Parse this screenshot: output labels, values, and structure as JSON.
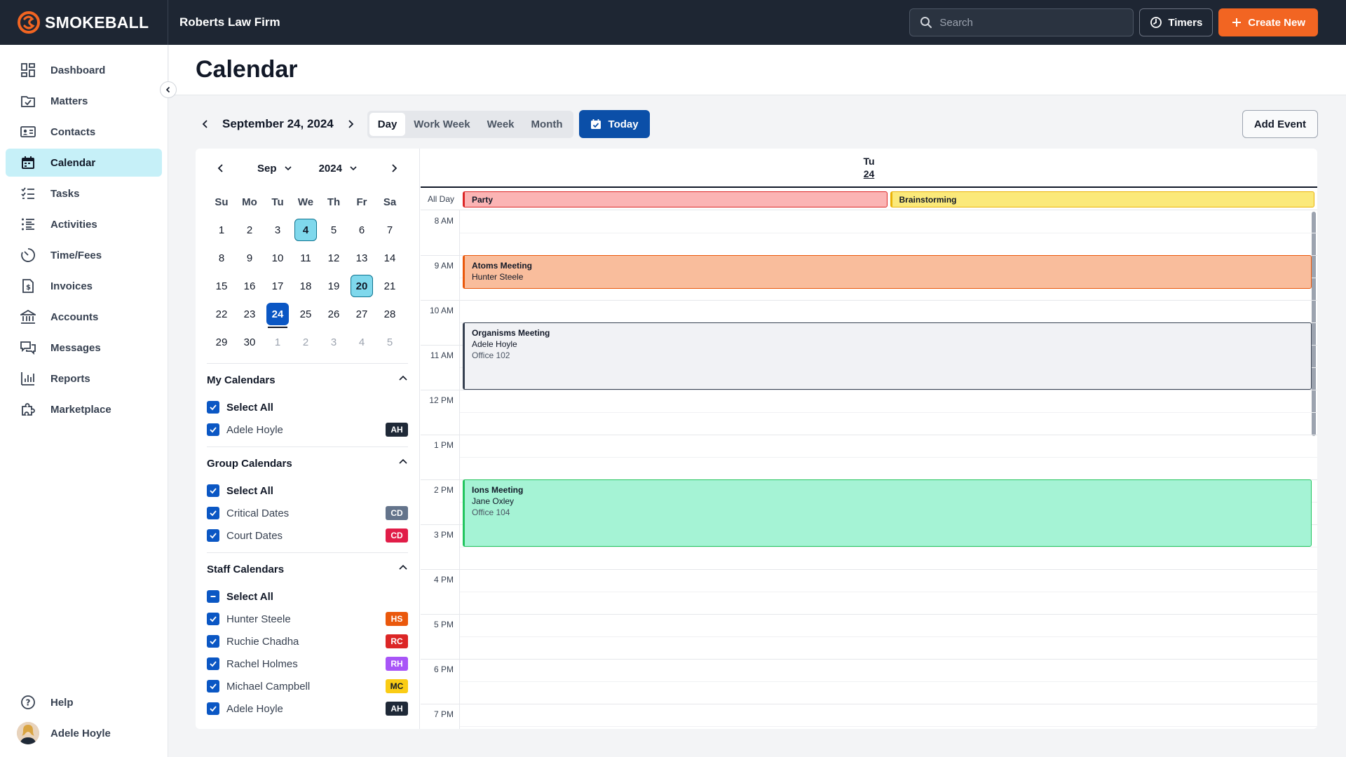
{
  "app": {
    "brand": "SMOKEBALL",
    "firm": "Roberts Law Firm",
    "search_placeholder": "Search",
    "timers_label": "Timers",
    "create_label": "Create New",
    "colors": {
      "topbar": "#1e2633",
      "accent": "#f26522",
      "primary": "#0b57c4"
    }
  },
  "sidebar": {
    "items": [
      {
        "label": "Dashboard",
        "icon": "dashboard-icon"
      },
      {
        "label": "Matters",
        "icon": "matters-icon"
      },
      {
        "label": "Contacts",
        "icon": "contacts-icon"
      },
      {
        "label": "Calendar",
        "icon": "calendar-icon",
        "active": true
      },
      {
        "label": "Tasks",
        "icon": "tasks-icon"
      },
      {
        "label": "Activities",
        "icon": "activities-icon"
      },
      {
        "label": "Time/Fees",
        "icon": "clock-icon"
      },
      {
        "label": "Invoices",
        "icon": "invoice-icon"
      },
      {
        "label": "Accounts",
        "icon": "bank-icon"
      },
      {
        "label": "Messages",
        "icon": "messages-icon"
      },
      {
        "label": "Reports",
        "icon": "reports-icon"
      },
      {
        "label": "Marketplace",
        "icon": "puzzle-icon"
      }
    ],
    "help_label": "Help",
    "user_name": "Adele Hoyle"
  },
  "page": {
    "title": "Calendar",
    "date_label": "September 24, 2024",
    "views": [
      "Day",
      "Work Week",
      "Week",
      "Month"
    ],
    "active_view": "Day",
    "today_label": "Today",
    "add_event_label": "Add Event"
  },
  "mini_cal": {
    "month": "Sep",
    "year": "2024",
    "dow": [
      "Su",
      "Mo",
      "Tu",
      "We",
      "Th",
      "Fr",
      "Sa"
    ],
    "weeks": [
      [
        "1",
        "2",
        "3",
        "4",
        "5",
        "6",
        "7"
      ],
      [
        "8",
        "9",
        "10",
        "11",
        "12",
        "13",
        "14"
      ],
      [
        "15",
        "16",
        "17",
        "18",
        "19",
        "20",
        "21"
      ],
      [
        "22",
        "23",
        "24",
        "25",
        "26",
        "27",
        "28"
      ],
      [
        "29",
        "30",
        "1",
        "2",
        "3",
        "4",
        "5"
      ]
    ],
    "highlighted": [
      "4",
      "20"
    ],
    "selected": "24"
  },
  "calendars": {
    "my": {
      "title": "My Calendars",
      "select_all": "Select All",
      "items": [
        {
          "label": "Adele Hoyle",
          "badge": "AH",
          "color": "#1f2937"
        }
      ]
    },
    "group": {
      "title": "Group Calendars",
      "select_all": "Select All",
      "items": [
        {
          "label": "Critical Dates",
          "badge": "CD",
          "color": "#64748b"
        },
        {
          "label": "Court Dates",
          "badge": "CD",
          "color": "#e11d48"
        }
      ]
    },
    "staff": {
      "title": "Staff Calendars",
      "select_all": "Select All",
      "items": [
        {
          "label": "Hunter Steele",
          "badge": "HS",
          "color": "#ea580c"
        },
        {
          "label": "Ruchie Chadha",
          "badge": "RC",
          "color": "#dc2626"
        },
        {
          "label": "Rachel Holmes",
          "badge": "RH",
          "color": "#a855f7"
        },
        {
          "label": "Michael Campbell",
          "badge": "MC",
          "color": "#facc15"
        },
        {
          "label": "Adele Hoyle",
          "badge": "AH",
          "color": "#1f2937"
        }
      ]
    }
  },
  "day_view": {
    "dow": "Tu",
    "day_num": "24",
    "all_day_label": "All Day",
    "all_day_events": [
      {
        "title": "Party",
        "bg": "#fbb4b4",
        "border": "#dc2626"
      },
      {
        "title": "Brainstorming",
        "bg": "#fbe97a",
        "border": "#eab308"
      }
    ],
    "hours": [
      "8 AM",
      "9 AM",
      "10 AM",
      "11 AM",
      "12 PM",
      "1 PM",
      "2 PM",
      "3 PM",
      "4 PM",
      "5 PM",
      "6 PM",
      "7 PM"
    ],
    "events": [
      {
        "title": "Atoms Meeting",
        "person": "Hunter Steele",
        "location": "",
        "start": 9.0,
        "end": 9.75,
        "bg": "#f9bd9c",
        "border": "#ea580c"
      },
      {
        "title": "Organisms Meeting",
        "person": "Adele Hoyle",
        "location": "Office 102",
        "start": 10.5,
        "end": 12.0,
        "bg": "#f1f2f5",
        "border": "#374151"
      },
      {
        "title": "Ions Meeting",
        "person": "Jane Oxley",
        "location": "Office 104",
        "start": 14.0,
        "end": 15.5,
        "bg": "#a5f3d5",
        "border": "#22c55e"
      }
    ]
  }
}
